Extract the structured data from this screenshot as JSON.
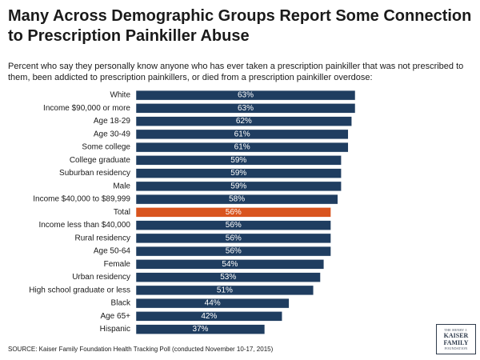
{
  "chart_data": {
    "type": "bar",
    "orientation": "horizontal",
    "title": "Many Across Demographic Groups Report Some Connection to Prescription Painkiller Abuse",
    "subtitle": "Percent who say they personally know anyone who has ever taken a prescription painkiller that was not prescribed to them, been addicted to prescription painkillers, or died from a prescription painkiller overdose:",
    "categories": [
      "White",
      "Income $90,000 or more",
      "Age 18-29",
      "Age 30-49",
      "Some college",
      "College graduate",
      "Suburban residency",
      "Male",
      "Income $40,000 to $89,999",
      "Total",
      "Income less than $40,000",
      "Rural residency",
      "Age 50-64",
      "Female",
      "Urban residency",
      "High school graduate or less",
      "Black",
      "Age 65+",
      "Hispanic"
    ],
    "values": [
      63,
      63,
      62,
      61,
      61,
      59,
      59,
      59,
      58,
      56,
      56,
      56,
      56,
      54,
      53,
      51,
      44,
      42,
      37
    ],
    "labels": [
      "63%",
      "63%",
      "62%",
      "61%",
      "61%",
      "59%",
      "59%",
      "59%",
      "58%",
      "56%",
      "56%",
      "56%",
      "56%",
      "54%",
      "53%",
      "51%",
      "44%",
      "42%",
      "37%"
    ],
    "highlight": "Total",
    "xlim": [
      0,
      63
    ],
    "xlabel": "",
    "ylabel": "",
    "grid": false,
    "legend": "none"
  },
  "colors": {
    "bar": "#1f3d60",
    "highlight": "#d9541e",
    "label_text": "#ffffff"
  },
  "source": "SOURCE: Kaiser Family Foundation Health Tracking Poll (conducted November 10-17, 2015)",
  "logo": {
    "line1": "THE HENRY J.",
    "line2a": "KAISER",
    "line2b": "FAMILY",
    "line3": "FOUNDATION"
  }
}
